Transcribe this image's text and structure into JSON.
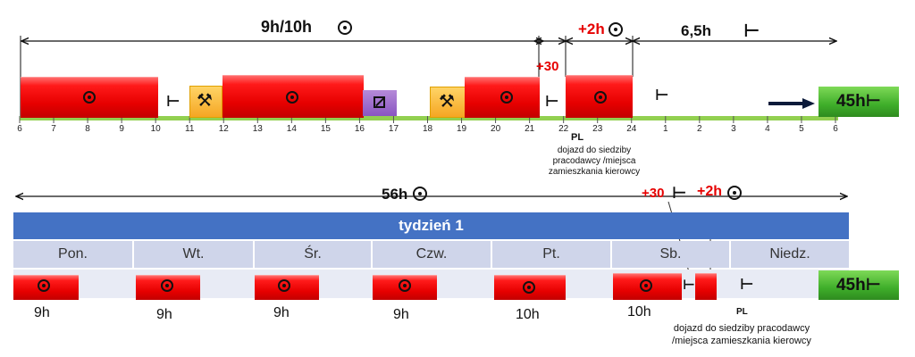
{
  "top_timeline": {
    "span_label": "9h/10h",
    "extra_label_1": "+30",
    "extra_label_2": "+2h",
    "rest_label": "6,5h",
    "green_box_label": "45h",
    "pl_label": "PL",
    "note_lines": [
      "dojazd do siedziby",
      "pracodawcy /miejsca",
      "zamieszkania kierowcy"
    ],
    "ticks": [
      "6",
      "7",
      "8",
      "9",
      "10",
      "11",
      "12",
      "13",
      "14",
      "15",
      "16",
      "17",
      "18",
      "19",
      "20",
      "21",
      "22",
      "23",
      "24",
      "1",
      "2",
      "3",
      "4",
      "5",
      "6"
    ]
  },
  "bottom_section": {
    "span_label": "56h",
    "extra_label_1": "+30",
    "extra_label_2": "+2h",
    "week_label": "tydzień 1",
    "days": [
      "Pon.",
      "Wt.",
      "Śr.",
      "Czw.",
      "Pt.",
      "Sb.",
      "Niedz."
    ],
    "hours": [
      "9h",
      "9h",
      "9h",
      "9h",
      "10h",
      "10h"
    ],
    "pl_label": "PL",
    "note_lines": [
      "dojazd do siedziby pracodawcy",
      "/miejsca zamieszkania kierowcy"
    ],
    "green_box_label": "45h"
  },
  "colors": {
    "driving": "#e60000",
    "week_bar": "#4472c4",
    "day_header": "#cfd5ea",
    "green": "#3fae2a",
    "timeline": "#92d050",
    "other_work": "#f5a623",
    "availability": "#8a56c2",
    "extra_text": "#e60000"
  },
  "icons": {
    "driving": "clock-icon",
    "rest": "bed-icon",
    "other_work": "hammers-icon",
    "availability": "availability-square-icon",
    "arrow": "right-arrow-icon"
  }
}
